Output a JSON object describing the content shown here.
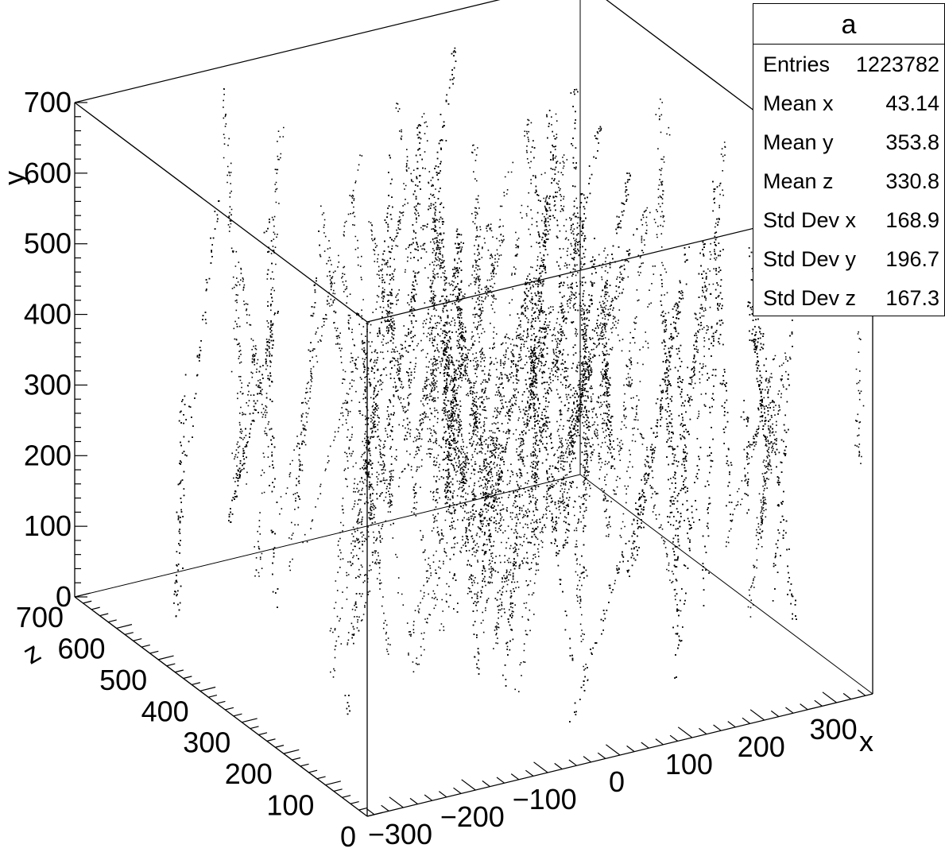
{
  "chart_data": {
    "type": "scatter",
    "dimensions": 3,
    "title": "",
    "xlabel": "x",
    "ylabel": "y",
    "zlabel": "z",
    "xlim": [
      -350,
      350
    ],
    "ylim": [
      0,
      700
    ],
    "zlim": [
      0,
      700
    ],
    "x_ticks": [
      "-300",
      "-200",
      "-100",
      "0",
      "100",
      "200",
      "300"
    ],
    "y_ticks": [
      "0",
      "100",
      "200",
      "300",
      "400",
      "500",
      "600",
      "700"
    ],
    "z_ticks": [
      "0",
      "100",
      "200",
      "300",
      "400",
      "500",
      "600",
      "700"
    ],
    "marker_color": "#000000",
    "grid": false,
    "legend": "top-right",
    "stats_box": {
      "title": "a",
      "rows": [
        {
          "label": "Entries",
          "value": "1223782"
        },
        {
          "label": "Mean x",
          "value": "43.14"
        },
        {
          "label": "Mean y",
          "value": "353.8"
        },
        {
          "label": "Mean z",
          "value": "330.8"
        },
        {
          "label": "Std Dev x",
          "value": "168.9"
        },
        {
          "label": "Std Dev y",
          "value": "196.7"
        },
        {
          "label": "Std Dev z",
          "value": "167.3"
        }
      ]
    },
    "distribution": {
      "description_values": "dense cloud of points along many near-vertical straight tracks",
      "mean": [
        43.14,
        353.8,
        330.8
      ],
      "std": [
        168.9,
        196.7,
        167.3
      ]
    }
  }
}
